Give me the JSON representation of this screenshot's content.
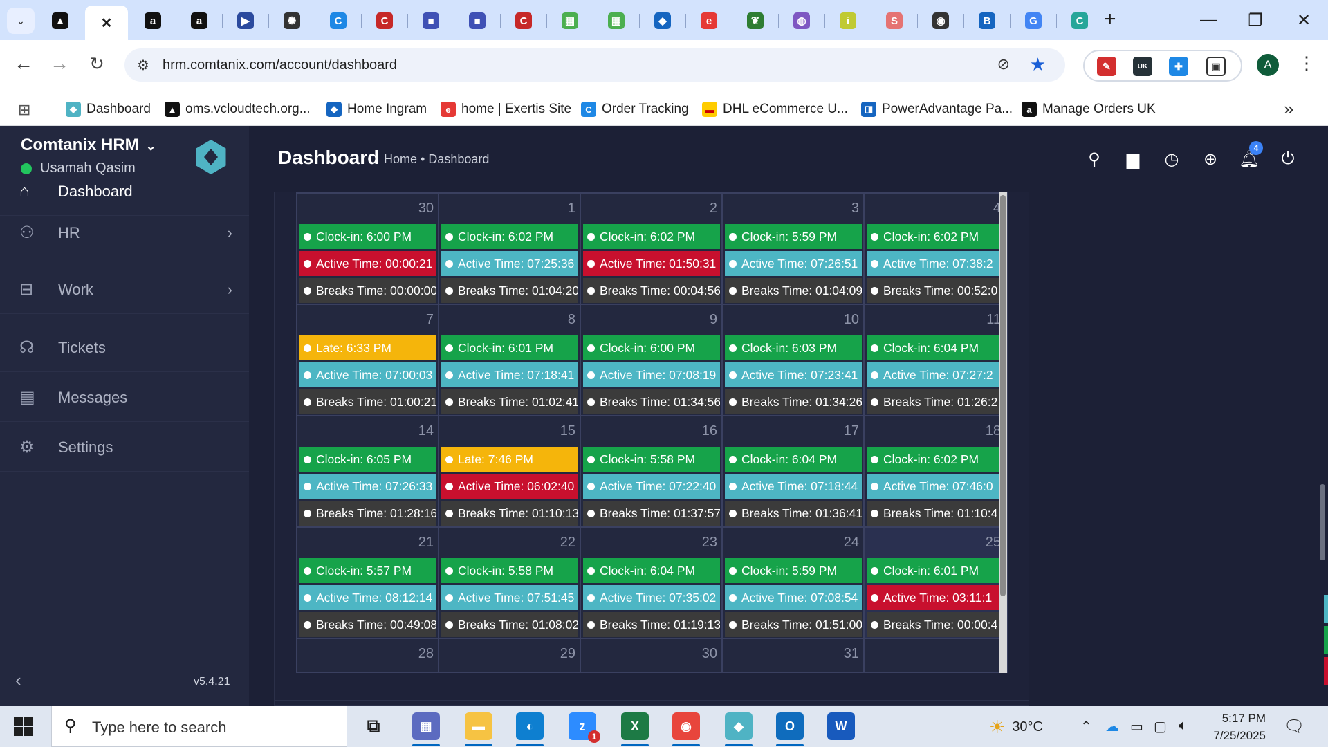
{
  "browser": {
    "tabs": [
      {
        "icon": "vcloud-icon",
        "glyph": "▲",
        "color": "#111111"
      },
      {
        "icon": "close-icon",
        "glyph": "✕",
        "color": "#ffffff",
        "active": true
      },
      {
        "icon": "amazon-icon",
        "glyph": "a",
        "color": "#111111"
      },
      {
        "icon": "amazon-icon",
        "glyph": "a",
        "color": "#111111"
      },
      {
        "icon": "play-icon",
        "glyph": "▶",
        "color": "#2b4a9e"
      },
      {
        "icon": "openai-icon",
        "glyph": "✺",
        "color": "#333333"
      },
      {
        "icon": "c-logo-icon",
        "glyph": "C",
        "color": "#1e88e5"
      },
      {
        "icon": "c-logo-icon",
        "glyph": "C",
        "color": "#c62828"
      },
      {
        "icon": "box-icon",
        "glyph": "■",
        "color": "#3f51b5"
      },
      {
        "icon": "box-icon",
        "glyph": "■",
        "color": "#3f51b5"
      },
      {
        "icon": "c-logo-icon",
        "glyph": "C",
        "color": "#c62828"
      },
      {
        "icon": "brand-icon",
        "glyph": "▦",
        "color": "#4caf50"
      },
      {
        "icon": "brand-icon",
        "glyph": "▦",
        "color": "#4caf50"
      },
      {
        "icon": "ingram-icon",
        "glyph": "◆",
        "color": "#1565c0"
      },
      {
        "icon": "exertis-icon",
        "glyph": "e",
        "color": "#e53935"
      },
      {
        "icon": "leaf-icon",
        "glyph": "❦",
        "color": "#2e7d32"
      },
      {
        "icon": "chart-icon",
        "glyph": "◍",
        "color": "#7e57c2"
      },
      {
        "icon": "infos-icon",
        "glyph": "i",
        "color": "#c0ca33"
      },
      {
        "icon": "shwe-icon",
        "glyph": "S",
        "color": "#e57373"
      },
      {
        "icon": "chrome-icon",
        "glyph": "◉",
        "color": "#333333"
      },
      {
        "icon": "doc-icon",
        "glyph": "B",
        "color": "#1565c0"
      },
      {
        "icon": "google-icon",
        "glyph": "G",
        "color": "#4285f4"
      },
      {
        "icon": "c-logo-icon",
        "glyph": "C",
        "color": "#26a69a"
      }
    ],
    "new_tab": "+",
    "url": "hrm.comtanix.com/account/dashboard",
    "profile_initial": "A",
    "bookmarks": [
      {
        "label": "Dashboard",
        "icon": "hex-icon",
        "glyph": "◆",
        "color": "#4fb3c4"
      },
      {
        "label": "oms.vcloudtech.org...",
        "icon": "vcloud-icon",
        "glyph": "▲",
        "color": "#111111"
      },
      {
        "label": "Home Ingram",
        "icon": "ingram-icon",
        "glyph": "◆",
        "color": "#1565c0"
      },
      {
        "label": "home | Exertis Site",
        "icon": "exertis-icon",
        "glyph": "e",
        "color": "#e53935"
      },
      {
        "label": "Order Tracking",
        "icon": "c-logo-icon",
        "glyph": "C",
        "color": "#1e88e5"
      },
      {
        "label": "DHL eCommerce U...",
        "icon": "dhl-icon",
        "glyph": "▬",
        "color": "#ffcc00"
      },
      {
        "label": "PowerAdvantage Pa...",
        "icon": "doc-icon",
        "glyph": "◨",
        "color": "#1565c0"
      },
      {
        "label": "Manage Orders UK",
        "icon": "amazon-icon",
        "glyph": "a",
        "color": "#111111"
      }
    ]
  },
  "sidebar": {
    "brand": "Comtanix HRM",
    "user": "Usamah Qasim",
    "items": [
      {
        "label": "Dashboard",
        "icon": "home-icon",
        "glyph": "⌂",
        "has_arrow": false,
        "active": true
      },
      {
        "label": "HR",
        "icon": "users-icon",
        "glyph": "⚇",
        "has_arrow": true
      },
      {
        "label": "Work",
        "icon": "briefcase-icon",
        "glyph": "⊟",
        "has_arrow": true
      },
      {
        "label": "Tickets",
        "icon": "headset-icon",
        "glyph": "☊",
        "has_arrow": false
      },
      {
        "label": "Messages",
        "icon": "message-icon",
        "glyph": "▤",
        "has_arrow": false
      },
      {
        "label": "Settings",
        "icon": "gear-icon",
        "glyph": "⚙",
        "has_arrow": false
      }
    ],
    "version": "v5.4.21"
  },
  "header": {
    "title": "Dashboard",
    "breadcrumb": "Home • Dashboard",
    "notification_count": "4"
  },
  "calendar": {
    "weeks": [
      {
        "days": [
          {
            "day": "30",
            "events": [
              [
                "green",
                "Clock-in: 6:00 PM"
              ],
              [
                "red",
                "Active Time: 00:00:21"
              ],
              [
                "dark",
                "Breaks Time: 00:00:00"
              ]
            ]
          },
          {
            "day": "1",
            "events": [
              [
                "green",
                "Clock-in: 6:02 PM"
              ],
              [
                "teal",
                "Active Time: 07:25:36"
              ],
              [
                "dark",
                "Breaks Time: 01:04:20"
              ]
            ]
          },
          {
            "day": "2",
            "events": [
              [
                "green",
                "Clock-in: 6:02 PM"
              ],
              [
                "red",
                "Active Time: 01:50:31"
              ],
              [
                "dark",
                "Breaks Time: 00:04:56"
              ]
            ]
          },
          {
            "day": "3",
            "events": [
              [
                "green",
                "Clock-in: 5:59 PM"
              ],
              [
                "teal",
                "Active Time: 07:26:51"
              ],
              [
                "dark",
                "Breaks Time: 01:04:09"
              ]
            ]
          },
          {
            "day": "4",
            "events": [
              [
                "green",
                "Clock-in: 6:02 PM"
              ],
              [
                "teal",
                "Active Time: 07:38:2"
              ],
              [
                "dark",
                "Breaks Time: 00:52:0"
              ]
            ]
          }
        ]
      },
      {
        "days": [
          {
            "day": "7",
            "events": [
              [
                "yellow",
                "Late: 6:33 PM"
              ],
              [
                "teal",
                "Active Time: 07:00:03"
              ],
              [
                "dark",
                "Breaks Time: 01:00:21"
              ]
            ]
          },
          {
            "day": "8",
            "events": [
              [
                "green",
                "Clock-in: 6:01 PM"
              ],
              [
                "teal",
                "Active Time: 07:18:41"
              ],
              [
                "dark",
                "Breaks Time: 01:02:41"
              ]
            ]
          },
          {
            "day": "9",
            "events": [
              [
                "green",
                "Clock-in: 6:00 PM"
              ],
              [
                "teal",
                "Active Time: 07:08:19"
              ],
              [
                "dark",
                "Breaks Time: 01:34:56"
              ]
            ]
          },
          {
            "day": "10",
            "events": [
              [
                "green",
                "Clock-in: 6:03 PM"
              ],
              [
                "teal",
                "Active Time: 07:23:41"
              ],
              [
                "dark",
                "Breaks Time: 01:34:26"
              ]
            ]
          },
          {
            "day": "11",
            "events": [
              [
                "green",
                "Clock-in: 6:04 PM"
              ],
              [
                "teal",
                "Active Time: 07:27:2"
              ],
              [
                "dark",
                "Breaks Time: 01:26:2"
              ]
            ]
          }
        ]
      },
      {
        "days": [
          {
            "day": "14",
            "events": [
              [
                "green",
                "Clock-in: 6:05 PM"
              ],
              [
                "teal",
                "Active Time: 07:26:33"
              ],
              [
                "dark",
                "Breaks Time: 01:28:16"
              ]
            ]
          },
          {
            "day": "15",
            "events": [
              [
                "yellow",
                "Late: 7:46 PM"
              ],
              [
                "red",
                "Active Time: 06:02:40"
              ],
              [
                "dark",
                "Breaks Time: 01:10:13"
              ]
            ]
          },
          {
            "day": "16",
            "events": [
              [
                "green",
                "Clock-in: 5:58 PM"
              ],
              [
                "teal",
                "Active Time: 07:22:40"
              ],
              [
                "dark",
                "Breaks Time: 01:37:57"
              ]
            ]
          },
          {
            "day": "17",
            "events": [
              [
                "green",
                "Clock-in: 6:04 PM"
              ],
              [
                "teal",
                "Active Time: 07:18:44"
              ],
              [
                "dark",
                "Breaks Time: 01:36:41"
              ]
            ]
          },
          {
            "day": "18",
            "events": [
              [
                "green",
                "Clock-in: 6:02 PM"
              ],
              [
                "teal",
                "Active Time: 07:46:0"
              ],
              [
                "dark",
                "Breaks Time: 01:10:4"
              ]
            ]
          }
        ]
      },
      {
        "days": [
          {
            "day": "21",
            "events": [
              [
                "green",
                "Clock-in: 5:57 PM"
              ],
              [
                "teal",
                "Active Time: 08:12:14"
              ],
              [
                "dark",
                "Breaks Time: 00:49:08"
              ]
            ]
          },
          {
            "day": "22",
            "events": [
              [
                "green",
                "Clock-in: 5:58 PM"
              ],
              [
                "teal",
                "Active Time: 07:51:45"
              ],
              [
                "dark",
                "Breaks Time: 01:08:02"
              ]
            ]
          },
          {
            "day": "23",
            "events": [
              [
                "green",
                "Clock-in: 6:04 PM"
              ],
              [
                "teal",
                "Active Time: 07:35:02"
              ],
              [
                "dark",
                "Breaks Time: 01:19:13"
              ]
            ]
          },
          {
            "day": "24",
            "events": [
              [
                "green",
                "Clock-in: 5:59 PM"
              ],
              [
                "teal",
                "Active Time: 07:08:54"
              ],
              [
                "dark",
                "Breaks Time: 01:51:00"
              ]
            ]
          },
          {
            "day": "25",
            "today": true,
            "events": [
              [
                "green",
                "Clock-in: 6:01 PM"
              ],
              [
                "red",
                "Active Time: 03:11:1"
              ],
              [
                "dark",
                "Breaks Time: 00:00:4"
              ]
            ]
          }
        ]
      },
      {
        "days": [
          {
            "day": "28",
            "events": []
          },
          {
            "day": "29",
            "events": []
          },
          {
            "day": "30",
            "events": []
          },
          {
            "day": "31",
            "events": []
          },
          {
            "day": "",
            "events": []
          }
        ]
      }
    ]
  },
  "taskbar": {
    "search_placeholder": "Type here to search",
    "weather": "30°C",
    "time": "5:17 PM",
    "date": "7/25/2025",
    "zoom_badge": "1",
    "apps": [
      {
        "icon": "task-view-icon",
        "glyph": "⧉",
        "color": "#1f1f1f"
      },
      {
        "icon": "calculator-icon",
        "glyph": "▦",
        "color": "#5c6bc0"
      },
      {
        "icon": "file-explorer-icon",
        "glyph": "▬",
        "color": "#f6c343"
      },
      {
        "icon": "edge-icon",
        "glyph": "◐",
        "color": "#0e7fd0"
      },
      {
        "icon": "zoom-icon",
        "glyph": "z",
        "color": "#2d8cff"
      },
      {
        "icon": "excel-icon",
        "glyph": "X",
        "color": "#1d7a45"
      },
      {
        "icon": "chrome-icon",
        "glyph": "◉",
        "color": "#e8453c"
      },
      {
        "icon": "comtanix-icon",
        "glyph": "◆",
        "color": "#4fb3c4"
      },
      {
        "icon": "outlook-icon",
        "glyph": "O",
        "color": "#0f6cbd"
      },
      {
        "icon": "word-icon",
        "glyph": "W",
        "color": "#185abd"
      }
    ]
  }
}
